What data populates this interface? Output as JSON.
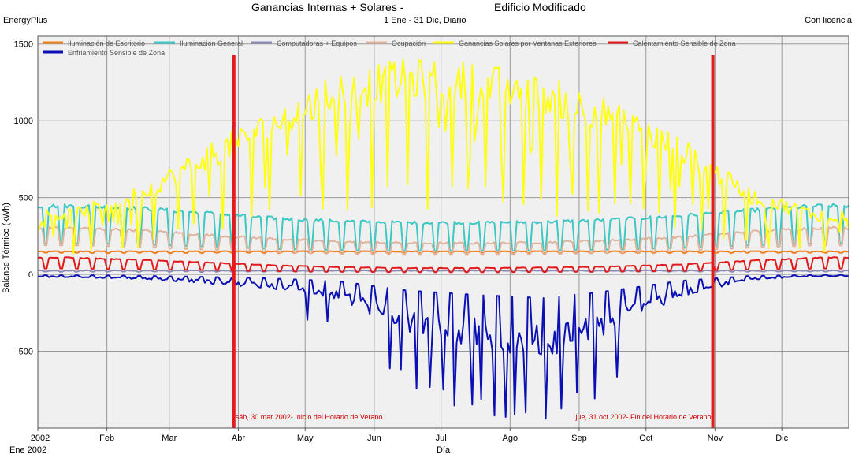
{
  "header": {
    "brand": "EnergyPlus",
    "title": "Ganancias Internas + Solares -",
    "building": "Edificio Modificado",
    "period": "1 Ene - 31 Dic, Diario",
    "license": "Con licencia"
  },
  "colors": {
    "plot_bg": "#f0f0f0",
    "grid": "#9a9a9a",
    "frame": "#555555",
    "dst_marker": "#e41a1c",
    "dst_label": "#cc0000"
  },
  "chart_data": {
    "type": "line",
    "ylabel": "Balance Térmico (kWh)",
    "xlabel": "Día",
    "ylim": [
      -1000,
      1550
    ],
    "yticks": [
      1500,
      1000,
      500,
      0,
      -500
    ],
    "ytick_labels": [
      "1500",
      "1000",
      "500",
      "0",
      "-500"
    ],
    "grid": true,
    "legend_position": "top",
    "xticks": [
      {
        "day": 0,
        "label": "2002"
      },
      {
        "day": 31,
        "label": "Feb"
      },
      {
        "day": 59,
        "label": "Mar"
      },
      {
        "day": 90,
        "label": "Abr"
      },
      {
        "day": 120,
        "label": "May"
      },
      {
        "day": 151,
        "label": "Jun"
      },
      {
        "day": 181,
        "label": "Jul"
      },
      {
        "day": 212,
        "label": "Ago"
      },
      {
        "day": 243,
        "label": "Sep"
      },
      {
        "day": 273,
        "label": "Oct"
      },
      {
        "day": 304,
        "label": "Nov"
      },
      {
        "day": 334,
        "label": "Dic"
      }
    ],
    "x_start_label": "Ene 2002",
    "markers": [
      {
        "day": 88,
        "label": "sáb, 30 mar 2002- Inicio del Horario de Verano"
      },
      {
        "day": 303,
        "label": "jue, 31 oct 2002- Fin del Horario de Verano"
      }
    ],
    "series": [
      {
        "name": "Iluminación de Escritorio",
        "color": "#f07f1e",
        "pattern": "flat",
        "weekday": 150,
        "weekend": 140
      },
      {
        "name": "Iluminación General",
        "color": "#3cc8c4",
        "pattern": "weekly",
        "weekday_monthly": [
          450,
          435,
          405,
          370,
          350,
          340,
          340,
          345,
          360,
          385,
          420,
          450
        ],
        "weekend_ratio": 0.45
      },
      {
        "name": "Computadoras + Equipos",
        "color": "#8a8ab4",
        "pattern": "flat",
        "weekday": 25,
        "weekend": 18
      },
      {
        "name": "Ocupación",
        "color": "#e0b49c",
        "pattern": "weekly",
        "weekday_monthly": [
          305,
          290,
          260,
          235,
          215,
          205,
          205,
          210,
          225,
          245,
          280,
          305
        ],
        "weekend_ratio": 0.62
      },
      {
        "name": "Ganancias Solares por Ventanas Exteriores",
        "color": "#ffff14",
        "pattern": "solar",
        "monthly_peak": [
          420,
          560,
          820,
          1050,
          1300,
          1380,
          1360,
          1270,
          1120,
          880,
          560,
          420
        ],
        "cloud_days": [
          16,
          24,
          38,
          45,
          52,
          63,
          70,
          83,
          96,
          104,
          118,
          128,
          139,
          150,
          157,
          166,
          175,
          186,
          193,
          201,
          209,
          218,
          226,
          233,
          240,
          247,
          252,
          259,
          266,
          272,
          279,
          286,
          298,
          308,
          318,
          328,
          342,
          353
        ]
      },
      {
        "name": "Calentamiento Sensible de Zona",
        "color": "#e31a1c",
        "pattern": "weekly",
        "weekday_monthly": [
          110,
          95,
          80,
          60,
          48,
          42,
          42,
          45,
          52,
          65,
          90,
          110
        ],
        "weekend_ratio": 0.35
      },
      {
        "name": "Enfriamiento Sensible de Zona",
        "color": "#0a10b4",
        "pattern": "cooling",
        "monthly_mean": [
          -15,
          -25,
          -45,
          -75,
          -130,
          -300,
          -380,
          -440,
          -300,
          -120,
          -30,
          -10
        ],
        "spike_days": [
          121,
          130,
          158,
          163,
          170,
          176,
          182,
          187,
          195,
          199,
          205,
          210,
          214,
          219,
          228,
          235,
          242,
          250,
          260
        ]
      }
    ]
  }
}
